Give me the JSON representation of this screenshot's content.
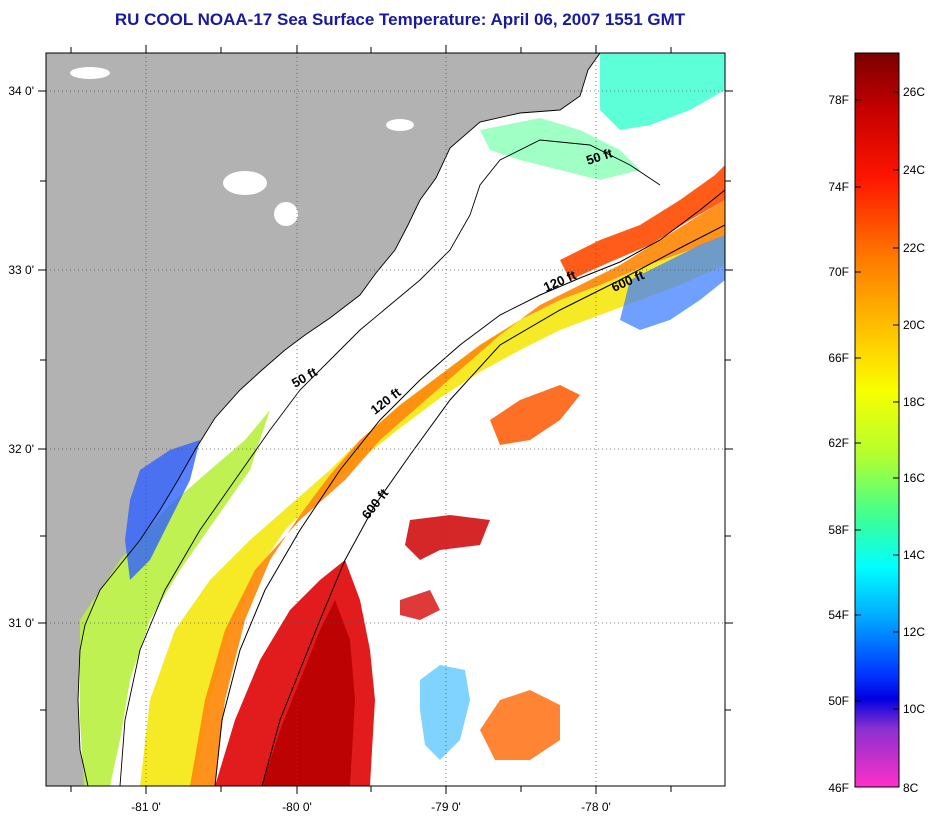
{
  "title": "RU COOL  NOAA-17  Sea Surface Temperature:  April 06, 2007 1551 GMT",
  "map": {
    "lon_labels": [
      "-81 0'",
      "-80 0'",
      "-79 0'",
      "-78 0'"
    ],
    "lat_labels": [
      "34 0'",
      "33 0'",
      "32 0'",
      "31 0'"
    ],
    "depth_labels": [
      {
        "id": "50ft-north",
        "text": "50 ft"
      },
      {
        "id": "120ft-north",
        "text": "120 ft"
      },
      {
        "id": "600ft-north",
        "text": "600 ft"
      },
      {
        "id": "50ft-south",
        "text": "50 ft"
      },
      {
        "id": "120ft-south",
        "text": "120 ft"
      },
      {
        "id": "600ft-south",
        "text": "600 ft"
      }
    ],
    "colors": {
      "land": "#b2b2b2",
      "cloud": "#ffffff"
    }
  },
  "colorbar": {
    "fahrenheit": [
      "78F",
      "74F",
      "70F",
      "66F",
      "62F",
      "58F",
      "54F",
      "50F",
      "46F"
    ],
    "celsius": [
      "26C",
      "24C",
      "22C",
      "20C",
      "18C",
      "16C",
      "14C",
      "12C",
      "10C",
      "8C"
    ]
  }
}
